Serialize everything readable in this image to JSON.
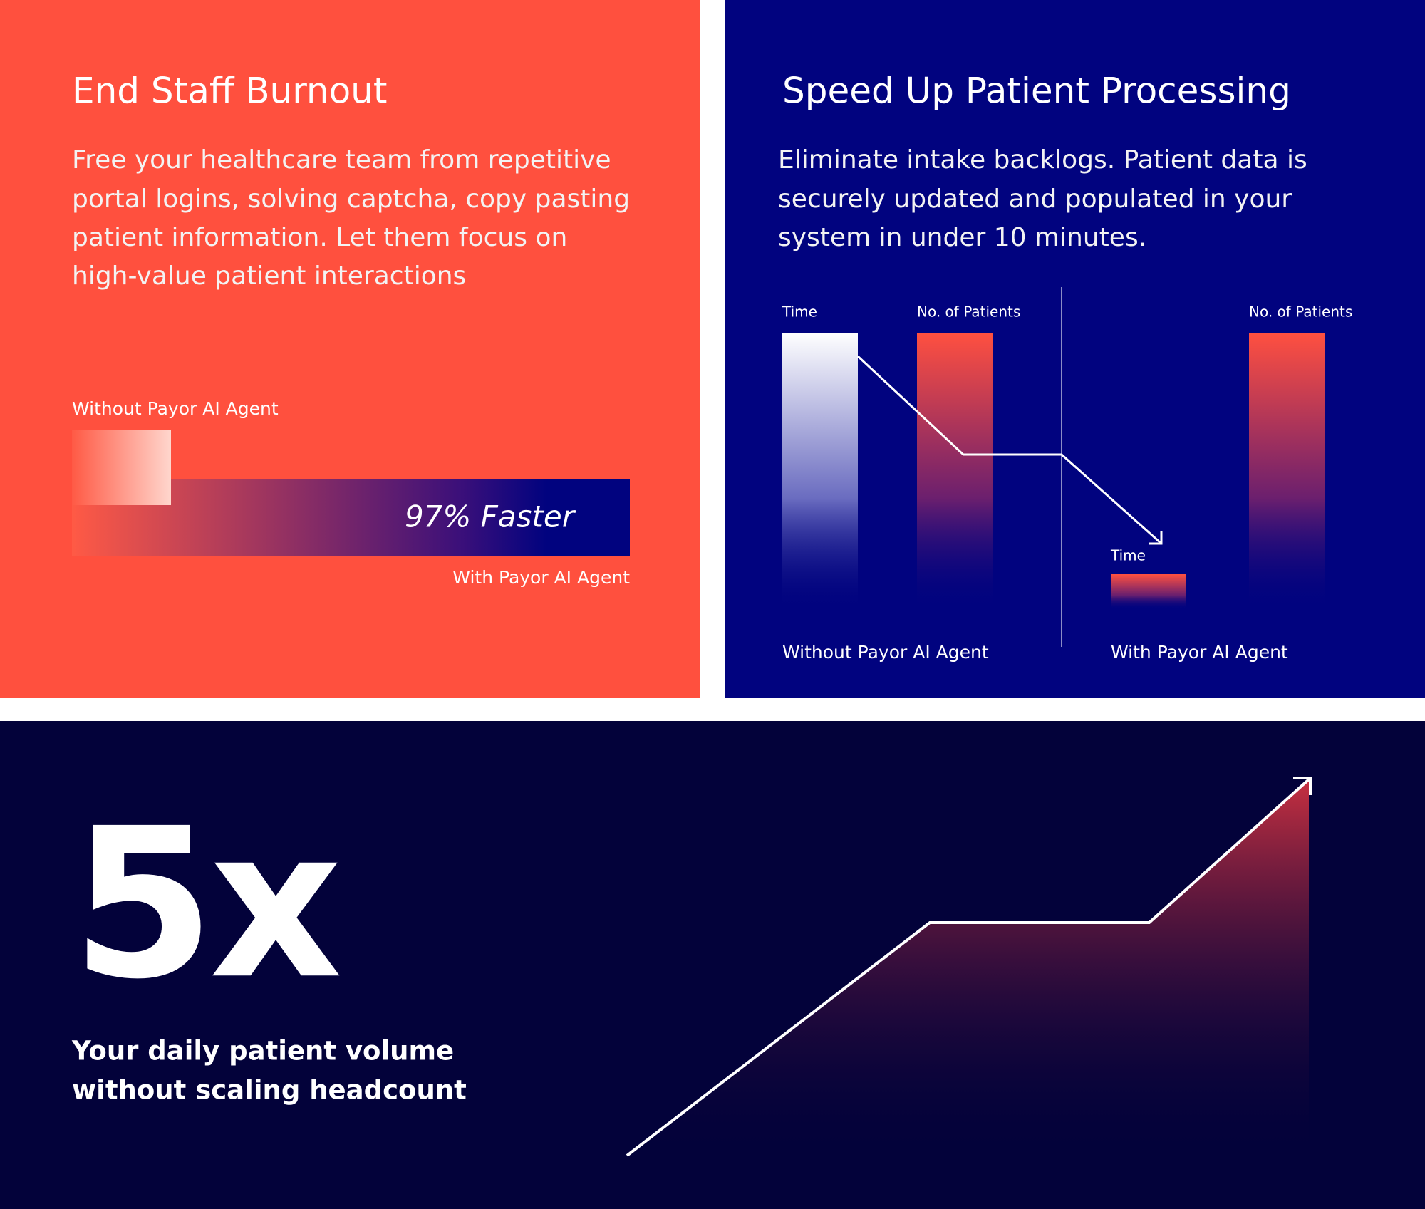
{
  "left_panel": {
    "title": "End Staff Burnout",
    "body": [
      "Free your healthcare team from repetitive",
      "portal logins, solving captcha, copy pasting",
      "patient information. Let them focus on",
      "high-value patient interactions"
    ],
    "without_label": "Without Payor AI Agent",
    "bar_label": "97% Faster",
    "with_label": "With Payor AI Agent"
  },
  "right_panel": {
    "title": "Speed Up Patient Processing",
    "body": [
      "Eliminate intake backlogs. Patient data is",
      "securely updated and populated in your",
      "system in under 10 minutes."
    ],
    "bars": [
      {
        "label": "Time"
      },
      {
        "label": "No. of Patients"
      },
      {
        "label": "Time"
      },
      {
        "label": "No. of Patients"
      }
    ],
    "groups": [
      "Without Payor AI Agent",
      "With Payor AI Agent"
    ]
  },
  "bottom_panel": {
    "headline": "5x",
    "caption": [
      "Your daily patient volume",
      "without scaling headcount"
    ]
  }
}
